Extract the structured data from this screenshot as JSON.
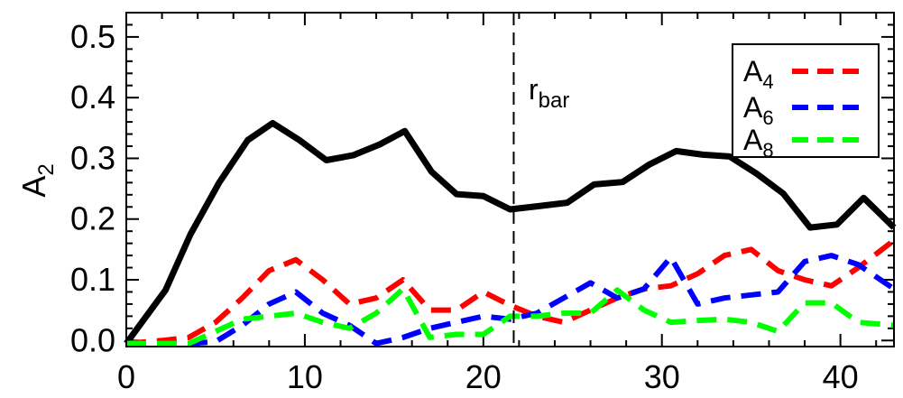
{
  "chart_data": {
    "type": "line",
    "title": "",
    "xlabel": "",
    "ylabel": {
      "main": "A",
      "sub": "2"
    },
    "xlim": [
      0,
      43
    ],
    "ylim": [
      -0.01,
      0.54
    ],
    "xticks": [
      0,
      10,
      20,
      30,
      40
    ],
    "xtick_labels": [
      "0",
      "10",
      "20",
      "30",
      "40"
    ],
    "yticks": [
      0.0,
      0.1,
      0.2,
      0.3,
      0.4,
      0.5
    ],
    "ytick_labels": [
      "0.0",
      "0.1",
      "0.2",
      "0.3",
      "0.4",
      "0.5"
    ],
    "grid": false,
    "legend_position": "top-right",
    "annotation": {
      "main": "r",
      "sub": "bar",
      "x": 21.7
    },
    "series": [
      {
        "key": "A2",
        "color": "#000000",
        "style": "solid",
        "x": [
          0,
          2.2,
          3.6,
          5.2,
          6.8,
          8.2,
          9.7,
          11.2,
          12.7,
          14.2,
          15.6,
          17.1,
          18.5,
          20.0,
          21.5,
          23.0,
          24.7,
          26.2,
          27.8,
          29.3,
          30.8,
          32.3,
          33.8,
          35.3,
          36.8,
          38.3,
          39.8,
          41.3,
          43.0
        ],
        "y": [
          -0.005,
          0.083,
          0.175,
          0.26,
          0.33,
          0.358,
          0.33,
          0.297,
          0.305,
          0.323,
          0.345,
          0.278,
          0.241,
          0.238,
          0.216,
          0.221,
          0.227,
          0.257,
          0.261,
          0.29,
          0.312,
          0.306,
          0.303,
          0.275,
          0.242,
          0.186,
          0.191,
          0.235,
          0.186
        ]
      },
      {
        "key": "A4",
        "label": {
          "main": "A",
          "sub": "4"
        },
        "color": "#ff0000",
        "style": "dashed",
        "x": [
          0,
          2.0,
          3.5,
          5.0,
          6.5,
          8.0,
          9.5,
          11.0,
          12.5,
          14.0,
          15.5,
          17.0,
          18.5,
          20.0,
          21.5,
          23.0,
          24.5,
          26.0,
          27.5,
          29.0,
          30.5,
          32.0,
          33.5,
          35.0,
          36.5,
          38.0,
          39.5,
          41.0,
          43.0
        ],
        "y": [
          -0.005,
          0.0,
          0.005,
          0.03,
          0.07,
          0.115,
          0.133,
          0.1,
          0.06,
          0.07,
          0.1,
          0.05,
          0.05,
          0.08,
          0.058,
          0.04,
          0.03,
          0.05,
          0.07,
          0.085,
          0.09,
          0.11,
          0.14,
          0.15,
          0.115,
          0.1,
          0.09,
          0.12,
          0.165
        ]
      },
      {
        "key": "A6",
        "label": {
          "main": "A",
          "sub": "6"
        },
        "color": "#0000ff",
        "style": "dashed",
        "x": [
          0,
          2.0,
          3.5,
          5.0,
          6.5,
          8.0,
          9.5,
          11.0,
          12.5,
          14.0,
          15.5,
          17.0,
          18.5,
          20.0,
          21.5,
          23.0,
          24.5,
          26.0,
          27.5,
          29.0,
          30.5,
          32.0,
          33.5,
          35.0,
          36.5,
          38.0,
          39.5,
          41.0,
          43.0
        ],
        "y": [
          -0.005,
          -0.005,
          -0.005,
          -0.002,
          0.025,
          0.06,
          0.08,
          0.045,
          0.025,
          -0.005,
          0.005,
          0.02,
          0.03,
          0.04,
          0.035,
          0.045,
          0.07,
          0.095,
          0.07,
          0.085,
          0.137,
          0.06,
          0.07,
          0.075,
          0.08,
          0.13,
          0.14,
          0.125,
          0.085
        ]
      },
      {
        "key": "A8",
        "label": {
          "main": "A",
          "sub": "8"
        },
        "color": "#00ff00",
        "style": "dashed",
        "x": [
          0,
          2.0,
          3.5,
          5.0,
          6.5,
          8.0,
          9.5,
          11.0,
          12.5,
          14.0,
          15.5,
          17.0,
          18.5,
          20.0,
          21.5,
          23.0,
          24.5,
          26.0,
          27.5,
          29.0,
          30.5,
          32.0,
          33.5,
          35.0,
          36.5,
          38.0,
          39.5,
          41.0,
          43.0
        ],
        "y": [
          -0.005,
          -0.005,
          -0.005,
          0.015,
          0.035,
          0.04,
          0.045,
          0.03,
          0.02,
          0.045,
          0.085,
          0.005,
          0.01,
          0.01,
          0.04,
          0.04,
          0.045,
          0.045,
          0.083,
          0.05,
          0.03,
          0.033,
          0.035,
          0.03,
          0.015,
          0.062,
          0.062,
          0.03,
          0.025
        ]
      }
    ]
  }
}
